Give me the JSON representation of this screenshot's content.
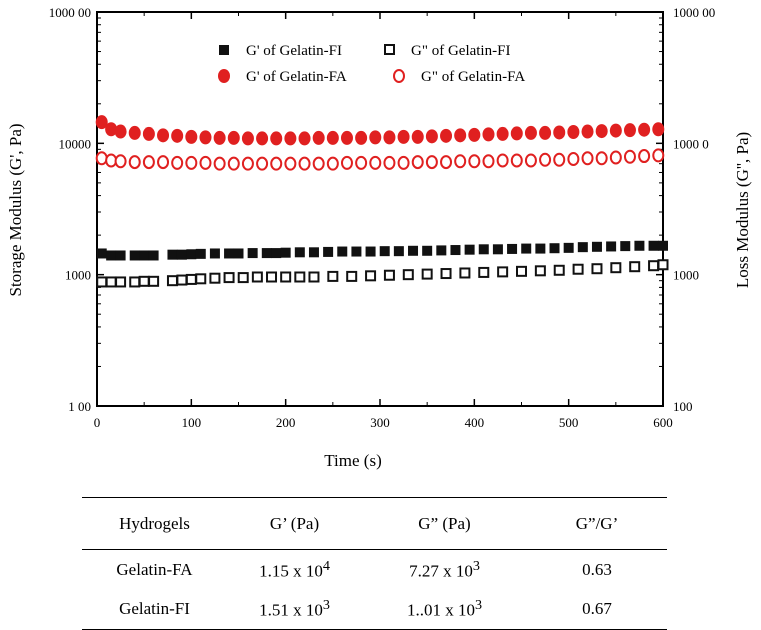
{
  "chart_data": {
    "type": "scatter",
    "xlabel": "Time (s)",
    "ylabel_left": "Storage Modulus (G', Pa)",
    "ylabel_right": "Loss Modulus (G'', Pa)",
    "xlim": [
      0,
      600
    ],
    "ylim": [
      100,
      100000
    ],
    "yscale": "log",
    "x_ticks": [
      "0",
      "100",
      "200",
      "300",
      "400",
      "500",
      "600"
    ],
    "y_ticks_left": [
      "100",
      "1000",
      "10000",
      "100000"
    ],
    "y_ticks_right": [
      "100",
      "1000",
      "10000",
      "100000"
    ],
    "y_tick_display_left": [
      "1 00",
      "1000",
      "10000",
      "1000 00"
    ],
    "y_tick_display_right": [
      "100",
      "1000",
      "1000 0",
      "1000 00"
    ],
    "legend_position": "top-center",
    "series": [
      {
        "name": "G' of Gelatin-FI",
        "marker": "square-filled",
        "color": "#111111",
        "x": [
          5,
          15,
          25,
          40,
          50,
          60,
          80,
          90,
          100,
          110,
          125,
          140,
          150,
          165,
          180,
          190,
          200,
          215,
          230,
          245,
          260,
          275,
          290,
          305,
          320,
          335,
          350,
          365,
          380,
          395,
          410,
          425,
          440,
          455,
          470,
          485,
          500,
          515,
          530,
          545,
          560,
          575,
          590,
          600
        ],
        "y": [
          1450,
          1400,
          1400,
          1400,
          1400,
          1400,
          1420,
          1420,
          1430,
          1440,
          1450,
          1450,
          1450,
          1460,
          1460,
          1460,
          1470,
          1480,
          1480,
          1490,
          1500,
          1500,
          1500,
          1510,
          1510,
          1520,
          1520,
          1530,
          1540,
          1550,
          1560,
          1560,
          1570,
          1580,
          1580,
          1590,
          1600,
          1620,
          1630,
          1640,
          1650,
          1660,
          1660,
          1660
        ]
      },
      {
        "name": "G'' of Gelatin-FI",
        "marker": "square-open",
        "color": "#111111",
        "x": [
          5,
          15,
          25,
          40,
          50,
          60,
          80,
          90,
          100,
          110,
          125,
          140,
          155,
          170,
          185,
          200,
          215,
          230,
          250,
          270,
          290,
          310,
          330,
          350,
          370,
          390,
          410,
          430,
          450,
          470,
          490,
          510,
          530,
          550,
          570,
          590,
          600
        ],
        "y": [
          880,
          880,
          880,
          880,
          890,
          890,
          900,
          910,
          920,
          930,
          940,
          950,
          950,
          960,
          960,
          960,
          960,
          960,
          970,
          970,
          980,
          990,
          1000,
          1010,
          1020,
          1030,
          1040,
          1050,
          1060,
          1070,
          1080,
          1100,
          1110,
          1130,
          1150,
          1170,
          1190
        ]
      },
      {
        "name": "G' of Gelatin-FA",
        "marker": "circle-filled",
        "color": "#e02020",
        "x": [
          5,
          15,
          25,
          40,
          55,
          70,
          85,
          100,
          115,
          130,
          145,
          160,
          175,
          190,
          205,
          220,
          235,
          250,
          265,
          280,
          295,
          310,
          325,
          340,
          355,
          370,
          385,
          400,
          415,
          430,
          445,
          460,
          475,
          490,
          505,
          520,
          535,
          550,
          565,
          580,
          595
        ],
        "y": [
          14500,
          12800,
          12300,
          12000,
          11800,
          11500,
          11400,
          11200,
          11100,
          11000,
          11000,
          10900,
          10900,
          10900,
          10900,
          10900,
          11000,
          11000,
          11000,
          11000,
          11100,
          11100,
          11200,
          11200,
          11300,
          11400,
          11500,
          11600,
          11700,
          11800,
          11900,
          12000,
          12000,
          12100,
          12200,
          12300,
          12400,
          12500,
          12600,
          12700,
          12800
        ]
      },
      {
        "name": "G'' of Gelatin-FA",
        "marker": "circle-open",
        "color": "#e02020",
        "x": [
          5,
          15,
          25,
          40,
          55,
          70,
          85,
          100,
          115,
          130,
          145,
          160,
          175,
          190,
          205,
          220,
          235,
          250,
          265,
          280,
          295,
          310,
          325,
          340,
          355,
          370,
          385,
          400,
          415,
          430,
          445,
          460,
          475,
          490,
          505,
          520,
          535,
          550,
          565,
          580,
          595
        ],
        "y": [
          7700,
          7400,
          7300,
          7200,
          7200,
          7200,
          7100,
          7100,
          7100,
          7000,
          7000,
          7000,
          7000,
          7000,
          7000,
          7000,
          7000,
          7000,
          7100,
          7100,
          7100,
          7100,
          7100,
          7200,
          7200,
          7200,
          7300,
          7300,
          7300,
          7400,
          7400,
          7400,
          7500,
          7500,
          7600,
          7700,
          7700,
          7800,
          7900,
          8000,
          8100
        ]
      }
    ]
  },
  "legend": {
    "entries": [
      {
        "label": "G' of Gelatin-FI",
        "marker": "square-filled",
        "color": "#111111"
      },
      {
        "label": "G\" of Gelatin-FI",
        "marker": "square-open",
        "color": "#111111"
      },
      {
        "label": "G' of Gelatin-FA",
        "marker": "circle-filled",
        "color": "#e02020"
      },
      {
        "label": "G\" of Gelatin-FA",
        "marker": "circle-open",
        "color": "#e02020"
      }
    ]
  },
  "table": {
    "headers": [
      "Hydrogels",
      "G’ (Pa)",
      "G” (Pa)",
      "G”/G’"
    ],
    "rows": [
      {
        "name": "Gelatin-FA",
        "g1_base": "1.15 x 10",
        "g1_exp": "4",
        "g2_base": "7.27 x 10",
        "g2_exp": "3",
        "ratio": "0.63"
      },
      {
        "name": "Gelatin-FI",
        "g1_base": "1.51 x 10",
        "g1_exp": "3",
        "g2_base": "1..01 x 10",
        "g2_exp": "3",
        "ratio": "0.67"
      }
    ]
  }
}
